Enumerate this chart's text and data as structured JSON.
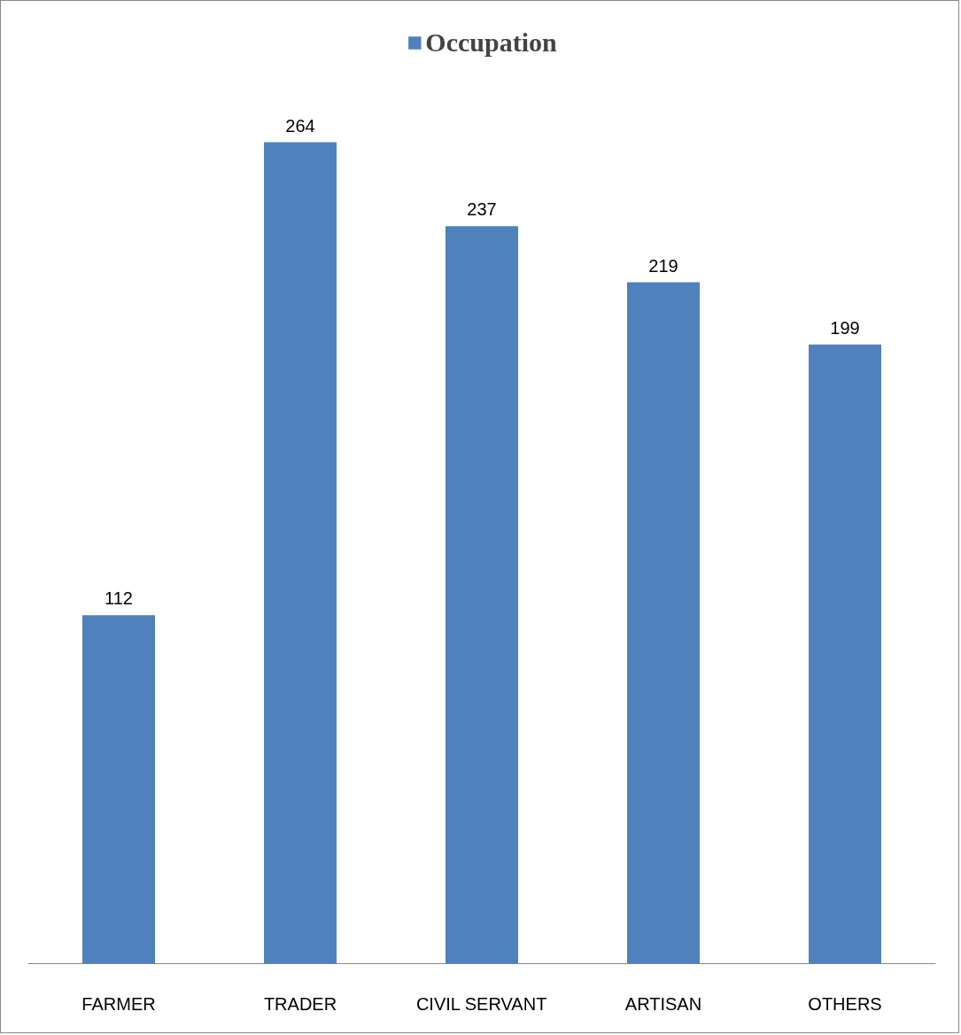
{
  "chart_data": {
    "type": "bar",
    "categories": [
      "FARMER",
      "TRADER",
      "CIVIL SERVANT",
      "ARTISAN",
      "OTHERS"
    ],
    "series": [
      {
        "name": "Occupation",
        "color": "#4f81bd",
        "values": [
          112,
          264,
          237,
          219,
          199
        ]
      }
    ],
    "tick_labels": "x",
    "grid": false,
    "legend": "top",
    "data_labels": true
  }
}
